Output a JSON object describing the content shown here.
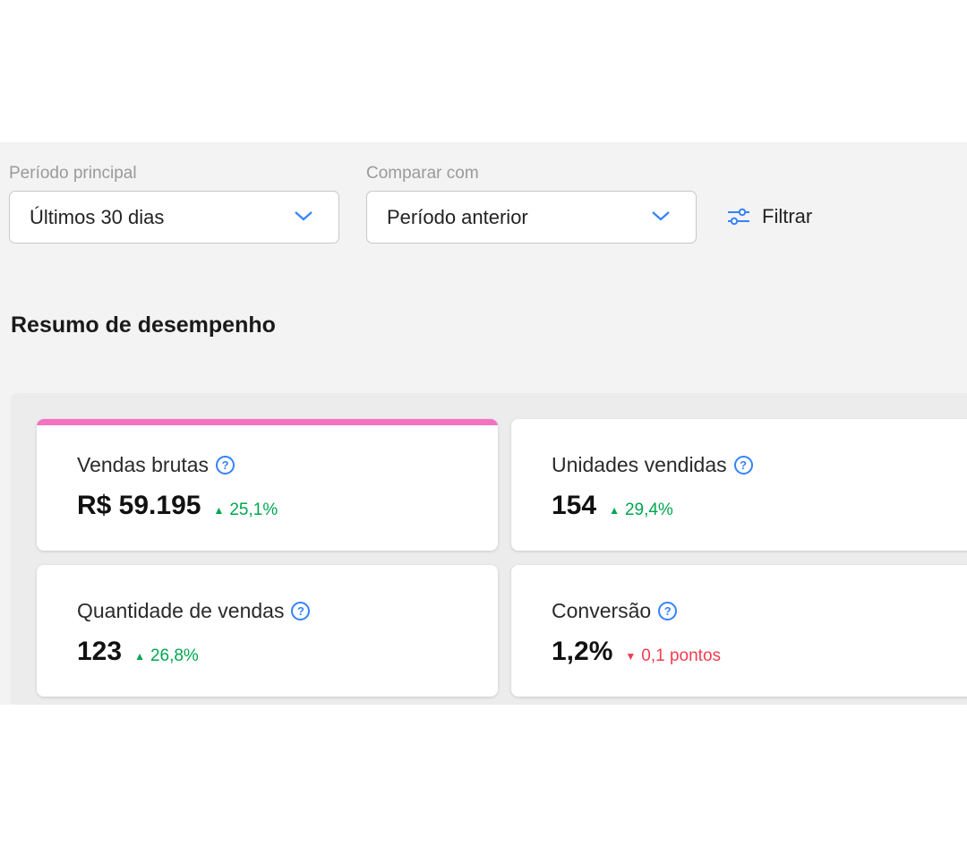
{
  "filters": {
    "primary_label": "Período principal",
    "primary_value": "Últimos 30 dias",
    "compare_label": "Comparar com",
    "compare_value": "Período anterior",
    "filter_label": "Filtrar"
  },
  "section_title": "Resumo de desempenho",
  "cards": [
    {
      "title": "Vendas brutas",
      "value": "R$ 59.195",
      "delta": "25,1%",
      "direction": "up"
    },
    {
      "title": "Unidades vendidas",
      "value": "154",
      "delta": "29,4%",
      "direction": "up"
    },
    {
      "title": "Quantidade de vendas",
      "value": "123",
      "delta": "26,8%",
      "direction": "up"
    },
    {
      "title": "Conversão",
      "value": "1,2%",
      "delta": "0,1 pontos",
      "direction": "down"
    }
  ],
  "icons": {
    "help": "?",
    "up": "▲",
    "down": "▼"
  },
  "colors": {
    "accent": "#3483fa",
    "positive": "#00a650",
    "negative": "#f23d4f",
    "highlight_bar": "#f472c0"
  }
}
